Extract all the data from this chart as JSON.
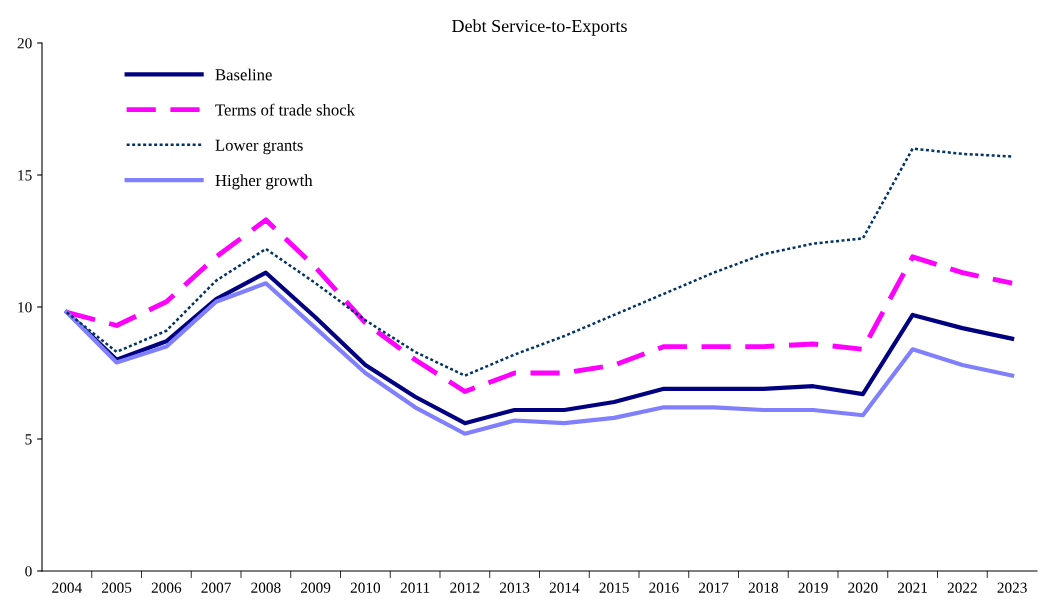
{
  "chart_data": {
    "type": "line",
    "title": "Debt Service-to-Exports",
    "categories": [
      "2004",
      "2005",
      "2006",
      "2007",
      "2008",
      "2009",
      "2010",
      "2011",
      "2012",
      "2013",
      "2014",
      "2015",
      "2016",
      "2017",
      "2018",
      "2019",
      "2020",
      "2021",
      "2022",
      "2023"
    ],
    "series": [
      {
        "name": "Baseline",
        "color": "#000080",
        "line_style": "solid",
        "values": [
          9.8,
          8.0,
          8.7,
          10.3,
          11.3,
          9.6,
          7.8,
          6.6,
          5.6,
          6.1,
          6.1,
          6.4,
          6.9,
          6.9,
          6.9,
          7.0,
          6.7,
          9.7,
          9.2,
          8.8
        ]
      },
      {
        "name": "Terms of trade shock",
        "color": "#ff00ff",
        "line_style": "dashed",
        "values": [
          9.8,
          9.3,
          10.2,
          11.9,
          13.3,
          11.5,
          9.4,
          8.0,
          6.8,
          7.5,
          7.5,
          7.8,
          8.5,
          8.5,
          8.5,
          8.6,
          8.4,
          11.9,
          11.3,
          10.9
        ]
      },
      {
        "name": "Lower grants",
        "color": "#003366",
        "line_style": "dotted",
        "values": [
          9.8,
          8.3,
          9.1,
          11.0,
          12.2,
          10.9,
          9.5,
          8.3,
          7.4,
          8.2,
          8.9,
          9.7,
          10.5,
          11.3,
          12.0,
          12.4,
          12.6,
          16.0,
          15.8,
          15.7
        ]
      },
      {
        "name": "Higher growth",
        "color": "#8080ff",
        "line_style": "solid",
        "values": [
          9.8,
          7.9,
          8.5,
          10.2,
          10.9,
          9.2,
          7.5,
          6.2,
          5.2,
          5.7,
          5.6,
          5.8,
          6.2,
          6.2,
          6.1,
          6.1,
          5.9,
          8.4,
          7.8,
          7.4
        ]
      }
    ],
    "ylim": [
      0,
      20
    ],
    "yticks": [
      0,
      5,
      10,
      15,
      20
    ],
    "grid": false,
    "legend": "top left",
    "marker": "none"
  }
}
